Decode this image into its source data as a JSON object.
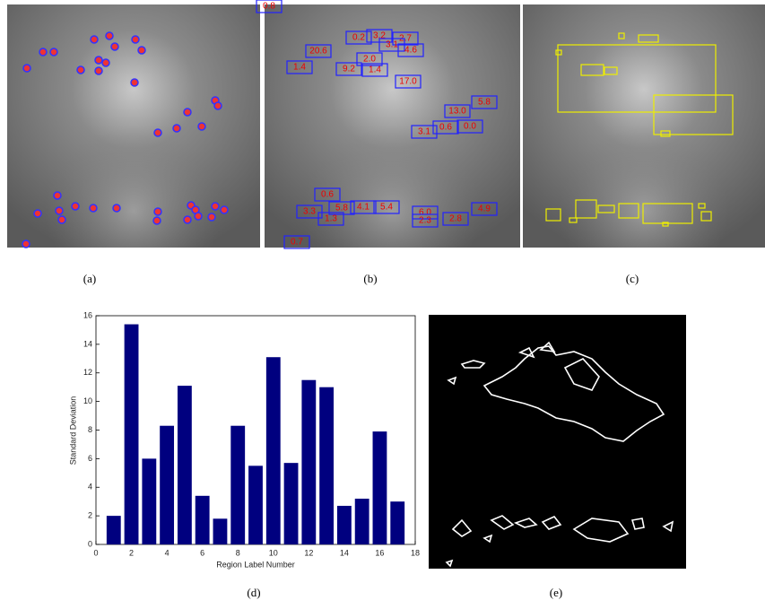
{
  "captions": [
    "(a)",
    "(b)",
    "(c)",
    "(d)",
    "(e)"
  ],
  "panel_b": {
    "labels": [
      "0.8",
      "0.2",
      "3.2",
      "2.7",
      "3.1",
      "4.6",
      "20.6",
      "1.4",
      "2.0",
      "9.2",
      "1.4",
      "17.0",
      "13.0",
      "5.8",
      "3.1",
      "0.6",
      "0.0",
      "0.6",
      "3.3",
      "5.8",
      "4.1",
      "5.4",
      "1.3",
      "6.0",
      "2.3",
      "2.8",
      "4.9",
      "0.7"
    ]
  },
  "chart_data": {
    "type": "bar",
    "xlabel": "Region Label Number",
    "ylabel": "Standard Deviation",
    "x": [
      1,
      2,
      3,
      4,
      5,
      6,
      7,
      8,
      9,
      10,
      11,
      12,
      13,
      14,
      15,
      16,
      17
    ],
    "values": [
      2.0,
      15.4,
      6.0,
      8.3,
      11.1,
      3.4,
      1.8,
      8.3,
      5.5,
      13.1,
      5.7,
      11.5,
      11.0,
      2.7,
      3.2,
      7.9,
      3.0
    ],
    "color": "#00007f",
    "xlim": [
      0,
      18
    ],
    "xticks": [
      0,
      2,
      4,
      6,
      8,
      10,
      12,
      14,
      16,
      18
    ],
    "ylim": [
      0,
      16
    ],
    "yticks": [
      0,
      2,
      4,
      6,
      8,
      10,
      12,
      14,
      16
    ]
  }
}
